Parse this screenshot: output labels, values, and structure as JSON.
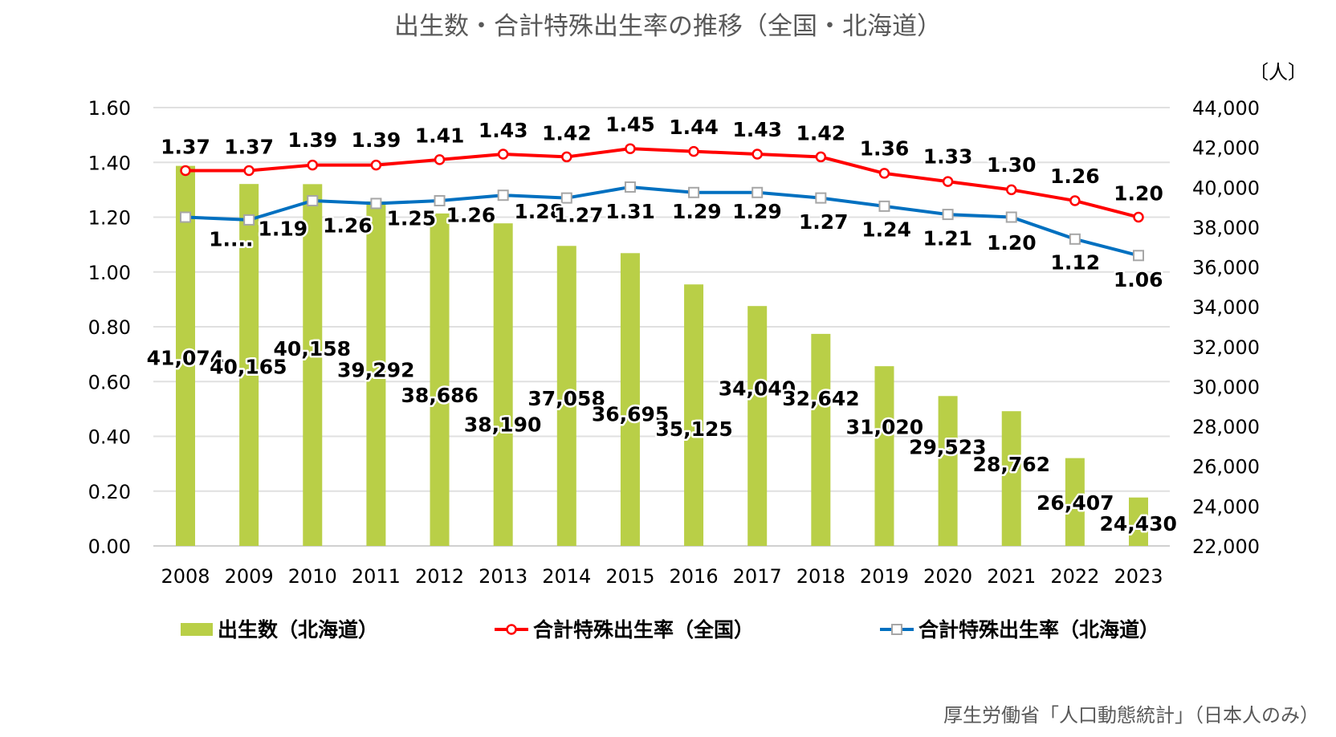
{
  "chart_data": {
    "type": "bar+line",
    "title": "出生数・合計特殊出生率の推移（全国・北海道）",
    "categories": [
      "2008",
      "2009",
      "2010",
      "2011",
      "2012",
      "2013",
      "2014",
      "2015",
      "2016",
      "2017",
      "2018",
      "2019",
      "2020",
      "2021",
      "2022",
      "2023"
    ],
    "left_axis": {
      "ylim": [
        0,
        1.6
      ],
      "ticks": [
        "0.00",
        "0.20",
        "0.40",
        "0.60",
        "0.80",
        "1.00",
        "1.20",
        "1.40",
        "1.60"
      ]
    },
    "right_axis": {
      "unit": "〔人〕",
      "ylim": [
        22000,
        44000
      ],
      "ticks": [
        "22,000",
        "24,000",
        "26,000",
        "28,000",
        "30,000",
        "32,000",
        "34,000",
        "36,000",
        "38,000",
        "40,000",
        "42,000",
        "44,000"
      ]
    },
    "grid": true,
    "legend_placement": "bottom",
    "series": [
      {
        "name": "出生数（北海道）",
        "type": "bar",
        "axis": "right",
        "color": "#b9cf47",
        "values": [
          41074,
          40165,
          40158,
          39292,
          38686,
          38190,
          37058,
          36695,
          35125,
          34040,
          32642,
          31020,
          29523,
          28762,
          26407,
          24430
        ],
        "labels": [
          "41,074",
          "40,165",
          "40,158",
          "39,292",
          "38,686",
          "38,190",
          "37,058",
          "36,695",
          "35,125",
          "34,040",
          "32,642",
          "31,020",
          "29,523",
          "28,762",
          "26,407",
          "24,430"
        ]
      },
      {
        "name": "合計特殊出生率（全国）",
        "type": "line",
        "axis": "left",
        "color": "#ff0000",
        "marker": "circle",
        "values": [
          1.37,
          1.37,
          1.39,
          1.39,
          1.41,
          1.43,
          1.42,
          1.45,
          1.44,
          1.43,
          1.42,
          1.36,
          1.33,
          1.3,
          1.26,
          1.2
        ],
        "labels": [
          "1.37",
          "1.37",
          "1.39",
          "1.39",
          "1.41",
          "1.43",
          "1.42",
          "1.45",
          "1.44",
          "1.43",
          "1.42",
          "1.36",
          "1.33",
          "1.30",
          "1.26",
          "1.20"
        ]
      },
      {
        "name": "合計特殊出生率（北海道）",
        "type": "line",
        "axis": "left",
        "color": "#0070c0",
        "marker": "square",
        "values": [
          1.2,
          1.19,
          1.26,
          1.25,
          1.26,
          1.28,
          1.27,
          1.31,
          1.29,
          1.29,
          1.27,
          1.24,
          1.21,
          1.2,
          1.12,
          1.06
        ],
        "labels": [
          "1....",
          "1.19",
          "1.26",
          "1.25",
          "1.26",
          "1.28",
          "1.27",
          "1.31",
          "1.29",
          "1.29",
          "1.27",
          "1.24",
          "1.21",
          "1.20",
          "1.12",
          "1.06"
        ]
      }
    ],
    "source": "厚生労働省「人口動態統計」（日本人のみ）"
  }
}
